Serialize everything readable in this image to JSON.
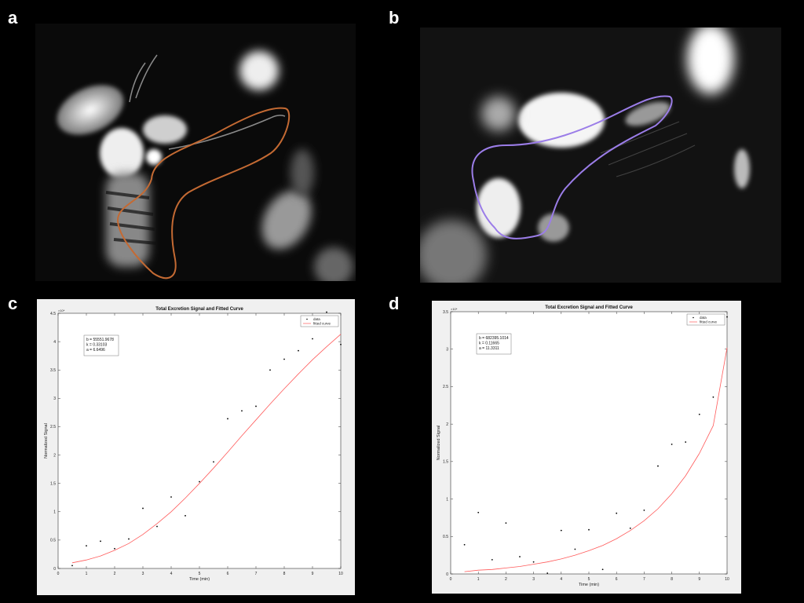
{
  "panels": {
    "a": "a",
    "b": "b",
    "c": "c",
    "d": "d"
  },
  "colors": {
    "outline_a": "#c46a33",
    "outline_b": "#9b7de8",
    "data": "#000000",
    "fit": "#ff5a5a"
  },
  "chart_data": [
    {
      "panel": "c",
      "type": "scatter",
      "title": "Total Excretion Signal and Fitted Curve",
      "xlabel": "Time (min)",
      "ylabel": "Normalized Signal",
      "y_exponent": "×10⁴",
      "xlim": [
        0,
        10
      ],
      "ylim": [
        0,
        4.5
      ],
      "xticks": [
        "0",
        "1",
        "2",
        "3",
        "4",
        "5",
        "6",
        "7",
        "8",
        "9",
        "10"
      ],
      "yticks": [
        "0",
        "0.5",
        "1",
        "1.5",
        "2",
        "2.5",
        "3",
        "3.5",
        "4",
        "4.5"
      ],
      "legend": {
        "position": "top-right",
        "data_label": "data",
        "fit_label": "fitted curve"
      },
      "params": [
        "b = 55551.9678",
        "k = 0.33103",
        "a = 6.6496"
      ],
      "series": [
        {
          "name": "data",
          "x": [
            0.5,
            1,
            1.5,
            2,
            2.5,
            3,
            3.5,
            4,
            4.5,
            5,
            5.5,
            6,
            6.5,
            7,
            7.5,
            8,
            8.5,
            9,
            9.5,
            10
          ],
          "y": [
            0.05,
            0.4,
            0.48,
            0.35,
            0.52,
            1.06,
            0.74,
            1.26,
            0.93,
            1.53,
            1.88,
            2.64,
            2.78,
            2.86,
            3.5,
            3.69,
            3.84,
            4.05,
            4.52,
            3.95
          ]
        },
        {
          "name": "fitted curve",
          "x": [
            0.5,
            1,
            1.5,
            2,
            2.5,
            3,
            3.5,
            4,
            4.5,
            5,
            5.5,
            6,
            6.5,
            7,
            7.5,
            8,
            8.5,
            9,
            9.5,
            10
          ],
          "y": [
            0.1,
            0.15,
            0.22,
            0.32,
            0.44,
            0.6,
            0.79,
            1.0,
            1.24,
            1.5,
            1.77,
            2.05,
            2.34,
            2.62,
            2.9,
            3.17,
            3.43,
            3.68,
            3.91,
            4.13
          ]
        }
      ]
    },
    {
      "panel": "d",
      "type": "scatter",
      "title": "Total Excretion Signal and Fitted Curve",
      "xlabel": "Time (min)",
      "ylabel": "Normalized Signal",
      "y_exponent": "×10⁴",
      "xlim": [
        0,
        10
      ],
      "ylim": [
        0,
        3.5
      ],
      "xticks": [
        "0",
        "1",
        "2",
        "3",
        "4",
        "5",
        "6",
        "7",
        "8",
        "9",
        "10"
      ],
      "yticks": [
        "0",
        "0.5",
        "1",
        "1.5",
        "2",
        "2.5",
        "3",
        "3.5"
      ],
      "legend": {
        "position": "top-right",
        "data_label": "data",
        "fit_label": "fitted curve"
      },
      "params": [
        "b = 682395.1014",
        "k = 0.11665",
        "a = 11.3311"
      ],
      "series": [
        {
          "name": "data",
          "x": [
            0.5,
            1,
            1.5,
            2,
            2.5,
            3,
            3.5,
            4,
            4.5,
            5,
            5.5,
            6,
            6.5,
            7,
            7.5,
            8,
            8.5,
            9,
            9.5,
            10
          ],
          "y": [
            0.39,
            0.82,
            0.19,
            0.68,
            0.23,
            0.16,
            0.01,
            0.58,
            0.33,
            0.59,
            0.06,
            0.81,
            0.61,
            0.85,
            1.44,
            1.73,
            1.76,
            2.13,
            2.36,
            3.43
          ]
        },
        {
          "name": "fitted curve",
          "x": [
            0.5,
            1,
            1.5,
            2,
            2.5,
            3,
            3.5,
            4,
            4.5,
            5,
            5.5,
            6,
            6.5,
            7,
            7.5,
            8,
            8.5,
            9,
            9.5,
            10
          ],
          "y": [
            0.03,
            0.05,
            0.06,
            0.08,
            0.1,
            0.13,
            0.16,
            0.2,
            0.25,
            0.31,
            0.38,
            0.47,
            0.58,
            0.71,
            0.87,
            1.07,
            1.31,
            1.61,
            1.98,
            3.02
          ]
        }
      ]
    }
  ]
}
